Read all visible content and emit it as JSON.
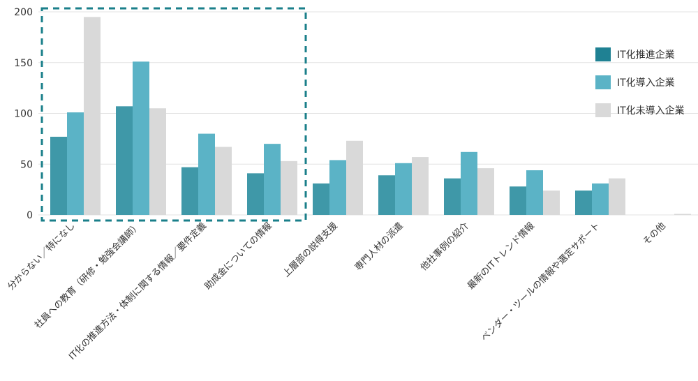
{
  "chart_data": {
    "type": "bar",
    "categories": [
      "分からない／特になし",
      "社員への教育（研修・勉強会講師）",
      "IT化の推進方法・体制に関する情報／要件定義",
      "助成金についての情報",
      "上層部の説得支援",
      "専門人材の派遣",
      "他社事例の紹介",
      "最新のITトレンド情報",
      "ベンダー・ツールの情報や選定サポート",
      "その他"
    ],
    "series": [
      {
        "name": "IT化推進企業",
        "color": "#3f98a8",
        "values": [
          77,
          107,
          47,
          41,
          31,
          39,
          36,
          28,
          24,
          0
        ]
      },
      {
        "name": "IT化導入企業",
        "color": "#5bb3c6",
        "values": [
          101,
          151,
          80,
          70,
          54,
          51,
          62,
          44,
          31,
          0
        ]
      },
      {
        "name": "IT化未導入企業",
        "color": "#d9d9d9",
        "values": [
          195,
          105,
          67,
          53,
          73,
          57,
          46,
          24,
          36,
          1
        ]
      }
    ],
    "legend_swatch_colors": [
      "#1f8193",
      "#5bb3c6",
      "#d9d9d9"
    ],
    "y_ticks": [
      "0",
      "50",
      "100",
      "150",
      "200"
    ],
    "ylim": [
      0,
      200
    ],
    "grid": true,
    "legend_position": "right",
    "highlight_box": {
      "covers_categories": [
        0,
        1,
        2,
        3
      ],
      "style": "dashed",
      "color": "#1a7f8a"
    },
    "title": "",
    "xlabel": "",
    "ylabel": ""
  }
}
